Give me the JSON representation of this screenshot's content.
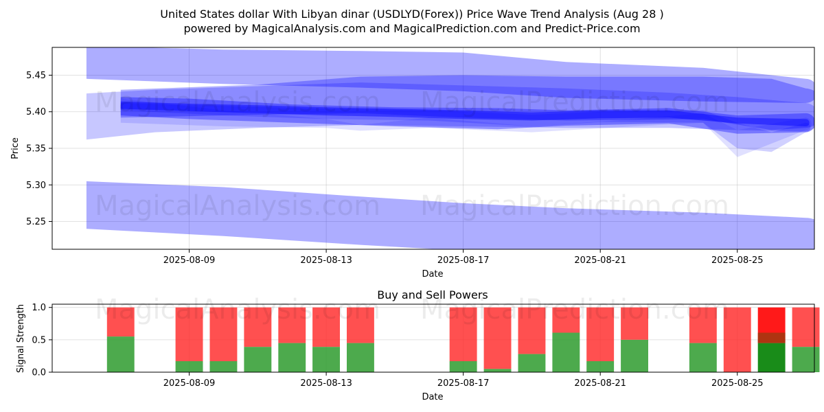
{
  "title_line1": "United States dollar With Libyan dinar (USDLYD(Forex)) Price Wave Trend Analysis (Aug 28 )",
  "title_line2": "powered by MagicalAnalysis.com and MagicalPrediction.com and Predict-Price.com",
  "watermarks": [
    "MagicalAnalysis.com",
    "MagicalPrediction.com"
  ],
  "colors": {
    "wave": "#0000ff",
    "buy": "#2e9b2e",
    "sell": "#ff2a2a",
    "buy_highlight": "#008000",
    "sell_highlight": "#ff0000"
  },
  "chart_data": [
    {
      "type": "area",
      "title": "",
      "xlabel": "Date",
      "ylabel": "Price",
      "xlim": [
        "2025-08-05T12:00",
        "2025-08-27T18:00"
      ],
      "ylim": [
        5.212,
        5.488
      ],
      "x_ticks": [
        "2025-08-09",
        "2025-08-13",
        "2025-08-17",
        "2025-08-21",
        "2025-08-25"
      ],
      "y_ticks": [
        5.25,
        5.3,
        5.35,
        5.4,
        5.45
      ],
      "grid": true,
      "bands": [
        {
          "x": [
            "2025-08-06",
            "2025-08-10",
            "2025-08-14",
            "2025-08-17",
            "2025-08-20",
            "2025-08-24",
            "2025-08-27"
          ],
          "upper": [
            5.49,
            5.485,
            5.483,
            5.481,
            5.468,
            5.46,
            5.445
          ],
          "lower": [
            5.445,
            5.438,
            5.433,
            5.428,
            5.419,
            5.414,
            5.412
          ],
          "opacity": 0.32
        },
        {
          "x": [
            "2025-08-06",
            "2025-08-10",
            "2025-08-14",
            "2025-08-17",
            "2025-08-20",
            "2025-08-24",
            "2025-08-27"
          ],
          "upper": [
            5.305,
            5.297,
            5.284,
            5.275,
            5.268,
            5.262,
            5.255
          ],
          "lower": [
            5.24,
            5.23,
            5.218,
            5.21,
            5.203,
            5.197,
            5.19
          ],
          "opacity": 0.32
        },
        {
          "x": [
            "2025-08-06",
            "2025-08-08",
            "2025-08-11",
            "2025-08-14",
            "2025-08-17",
            "2025-08-20",
            "2025-08-23",
            "2025-08-25",
            "2025-08-27"
          ],
          "upper": [
            5.425,
            5.43,
            5.435,
            5.44,
            5.436,
            5.432,
            5.426,
            5.42,
            5.412
          ],
          "lower": [
            5.362,
            5.372,
            5.378,
            5.382,
            5.38,
            5.378,
            5.378,
            5.375,
            5.373
          ],
          "opacity": 0.22
        },
        {
          "x": [
            "2025-08-07",
            "2025-08-11",
            "2025-08-14",
            "2025-08-17",
            "2025-08-20",
            "2025-08-24",
            "2025-08-26",
            "2025-08-27"
          ],
          "upper": [
            5.43,
            5.437,
            5.448,
            5.45,
            5.448,
            5.448,
            5.445,
            5.432
          ],
          "lower": [
            5.392,
            5.396,
            5.398,
            5.392,
            5.388,
            5.39,
            5.375,
            5.378
          ],
          "opacity": 0.3
        },
        {
          "x": [
            "2025-08-07",
            "2025-08-09",
            "2025-08-12",
            "2025-08-15",
            "2025-08-18",
            "2025-08-20",
            "2025-08-23",
            "2025-08-25",
            "2025-08-27"
          ],
          "upper": [
            5.42,
            5.418,
            5.41,
            5.406,
            5.405,
            5.402,
            5.405,
            5.395,
            5.398
          ],
          "lower": [
            5.395,
            5.39,
            5.385,
            5.38,
            5.376,
            5.381,
            5.384,
            5.37,
            5.372
          ],
          "opacity": 0.35
        },
        {
          "x": [
            "2025-08-07",
            "2025-08-10",
            "2025-08-13",
            "2025-08-16",
            "2025-08-19",
            "2025-08-21",
            "2025-08-24",
            "2025-08-25",
            "2025-08-26",
            "2025-08-27"
          ],
          "upper": [
            5.412,
            5.408,
            5.404,
            5.402,
            5.396,
            5.4,
            5.402,
            5.385,
            5.372,
            5.385
          ],
          "lower": [
            5.402,
            5.395,
            5.39,
            5.388,
            5.38,
            5.386,
            5.385,
            5.35,
            5.345,
            5.372
          ],
          "opacity": 0.18
        },
        {
          "x": [
            "2025-08-07",
            "2025-08-09",
            "2025-08-11",
            "2025-08-13",
            "2025-08-15",
            "2025-08-17",
            "2025-08-19",
            "2025-08-21",
            "2025-08-23",
            "2025-08-25",
            "2025-08-27"
          ],
          "upper": [
            5.414,
            5.411,
            5.409,
            5.406,
            5.404,
            5.402,
            5.399,
            5.402,
            5.402,
            5.392,
            5.39
          ],
          "lower": [
            5.404,
            5.401,
            5.398,
            5.395,
            5.393,
            5.39,
            5.388,
            5.391,
            5.392,
            5.384,
            5.38
          ],
          "opacity": 0.45
        },
        {
          "x": [
            "2025-08-07",
            "2025-08-10",
            "2025-08-13",
            "2025-08-14",
            "2025-08-16",
            "2025-08-19",
            "2025-08-22",
            "2025-08-24",
            "2025-08-25",
            "2025-08-27"
          ],
          "upper": [
            5.418,
            5.402,
            5.39,
            5.382,
            5.392,
            5.38,
            5.39,
            5.398,
            5.375,
            5.392
          ],
          "lower": [
            5.385,
            5.38,
            5.378,
            5.374,
            5.378,
            5.372,
            5.38,
            5.385,
            5.338,
            5.375
          ],
          "opacity": 0.12
        }
      ]
    },
    {
      "type": "bar",
      "title": "Buy and Sell Powers",
      "xlabel": "Date",
      "ylabel": "Signal Strength",
      "xlim": [
        "2025-08-05T12:00",
        "2025-08-27T18:00"
      ],
      "ylim": [
        0,
        1.05
      ],
      "x_ticks": [
        "2025-08-09",
        "2025-08-13",
        "2025-08-17",
        "2025-08-21",
        "2025-08-25"
      ],
      "y_ticks": [
        0.0,
        0.5,
        1.0
      ],
      "grid": true,
      "bars": [
        {
          "date": "2025-08-07",
          "buy": 0.55
        },
        {
          "date": "2025-08-09",
          "buy": 0.17
        },
        {
          "date": "2025-08-10",
          "buy": 0.17
        },
        {
          "date": "2025-08-11",
          "buy": 0.39
        },
        {
          "date": "2025-08-12",
          "buy": 0.45
        },
        {
          "date": "2025-08-13",
          "buy": 0.39
        },
        {
          "date": "2025-08-14",
          "buy": 0.45
        },
        {
          "date": "2025-08-17",
          "buy": 0.17
        },
        {
          "date": "2025-08-18",
          "buy": 0.05
        },
        {
          "date": "2025-08-19",
          "buy": 0.28
        },
        {
          "date": "2025-08-20",
          "buy": 0.61
        },
        {
          "date": "2025-08-21",
          "buy": 0.17
        },
        {
          "date": "2025-08-22",
          "buy": 0.5
        },
        {
          "date": "2025-08-24",
          "buy": 0.45
        },
        {
          "date": "2025-08-25",
          "buy": 0.0
        },
        {
          "date": "2025-08-26",
          "buy": 0.45,
          "highlight": true,
          "overlay_from": 0.45,
          "overlay_to": 0.61
        },
        {
          "date": "2025-08-27",
          "buy": 0.39
        }
      ]
    }
  ]
}
